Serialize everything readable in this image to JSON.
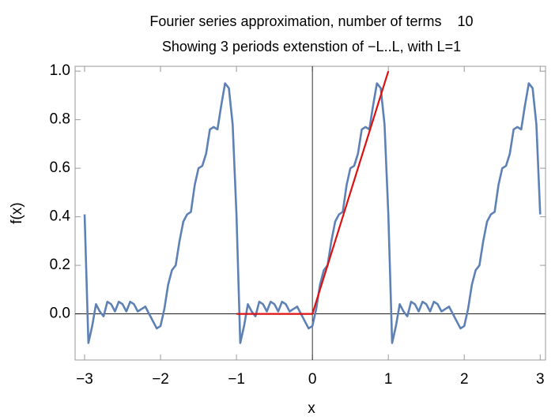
{
  "chart_data": {
    "type": "line",
    "title": "Fourier series approximation, number of terms    10",
    "subtitle": "Showing 3 periods extenstion of −L..L, with L=1",
    "x_label": "x",
    "y_label": "f(x)",
    "xlim": [
      -3.125,
      3.07
    ],
    "ylim": [
      -0.19,
      1.02
    ],
    "xticks": [
      {
        "value": -3,
        "label": "−3"
      },
      {
        "value": -2,
        "label": "−2"
      },
      {
        "value": -1,
        "label": "−1"
      },
      0,
      1,
      2,
      3
    ],
    "yticks": [
      {
        "value": 0,
        "label": "0.0"
      },
      {
        "value": 0.2,
        "label": "0.2"
      },
      {
        "value": 0.4,
        "label": "0.4"
      },
      {
        "value": 0.6,
        "label": "0.6"
      },
      {
        "value": 0.8,
        "label": "0.8"
      },
      {
        "value": 1,
        "label": "1.0"
      }
    ],
    "series": [
      {
        "color": "#5e81b5",
        "x": [
          -3,
          -2.95,
          -2.9,
          -2.85,
          -2.8,
          -2.75,
          -2.7,
          -2.65,
          -2.6,
          -2.55,
          -2.5,
          -2.45,
          -2.4,
          -2.35,
          -2.3,
          -2.25,
          -2.2,
          -2.15,
          -2.1,
          -2.05,
          -2,
          -1.95,
          -1.9,
          -1.85,
          -1.8,
          -1.75,
          -1.7,
          -1.65,
          -1.6,
          -1.55,
          -1.5,
          -1.45,
          -1.4,
          -1.35,
          -1.3,
          -1.25,
          -1.2,
          -1.15,
          -1.1,
          -1.05,
          -1,
          -0.95,
          -0.9,
          -0.85,
          -0.8,
          -0.75,
          -0.7,
          -0.65,
          -0.6,
          -0.55,
          -0.5,
          -0.45,
          -0.4,
          -0.35,
          -0.3,
          -0.25,
          -0.2,
          -0.15,
          -0.1,
          -0.05,
          0,
          0.05,
          0.1,
          0.15,
          0.2,
          0.25,
          0.3,
          0.35,
          0.4,
          0.45,
          0.5,
          0.55,
          0.6,
          0.65,
          0.7,
          0.75,
          0.8,
          0.85,
          0.9,
          0.95,
          1,
          1.05,
          1.1,
          1.15,
          1.2,
          1.25,
          1.3,
          1.35,
          1.4,
          1.45,
          1.5,
          1.55,
          1.6,
          1.65,
          1.7,
          1.75,
          1.8,
          1.85,
          1.9,
          1.95,
          2,
          2.05,
          2.1,
          2.15,
          2.2,
          2.25,
          2.3,
          2.35,
          2.4,
          2.45,
          2.5,
          2.55,
          2.6,
          2.65,
          2.7,
          2.75,
          2.8,
          2.85,
          2.9,
          2.95,
          3
        ],
        "values": [
          0.41,
          -0.12,
          -0.05,
          0.04,
          0.01,
          -0.01,
          0.05,
          0.04,
          0.01,
          0.05,
          0.04,
          0.01,
          0.05,
          0.04,
          0.01,
          0.02,
          0.03,
          0.0,
          -0.03,
          -0.06,
          -0.05,
          0.02,
          0.12,
          0.18,
          0.2,
          0.3,
          0.38,
          0.41,
          0.42,
          0.53,
          0.6,
          0.61,
          0.66,
          0.76,
          0.77,
          0.76,
          0.86,
          0.95,
          0.93,
          0.78,
          0.41,
          -0.12,
          -0.05,
          0.04,
          0.01,
          -0.01,
          0.05,
          0.04,
          0.01,
          0.05,
          0.04,
          0.01,
          0.05,
          0.04,
          0.01,
          0.02,
          0.03,
          0.0,
          -0.03,
          -0.06,
          -0.05,
          0.02,
          0.12,
          0.18,
          0.2,
          0.3,
          0.38,
          0.41,
          0.42,
          0.53,
          0.6,
          0.61,
          0.66,
          0.76,
          0.77,
          0.76,
          0.86,
          0.95,
          0.93,
          0.78,
          0.41,
          -0.12,
          -0.05,
          0.04,
          0.01,
          -0.01,
          0.05,
          0.04,
          0.01,
          0.05,
          0.04,
          0.01,
          0.05,
          0.04,
          0.01,
          0.02,
          0.03,
          0.0,
          -0.03,
          -0.06,
          -0.05,
          0.02,
          0.12,
          0.18,
          0.2,
          0.3,
          0.38,
          0.41,
          0.42,
          0.53,
          0.6,
          0.61,
          0.66,
          0.76,
          0.77,
          0.76,
          0.86,
          0.95,
          0.93,
          0.78,
          0.41
        ]
      },
      {
        "color": "#dd1111",
        "x": [
          -1,
          0,
          1
        ],
        "values": [
          0,
          0,
          1
        ]
      }
    ]
  }
}
